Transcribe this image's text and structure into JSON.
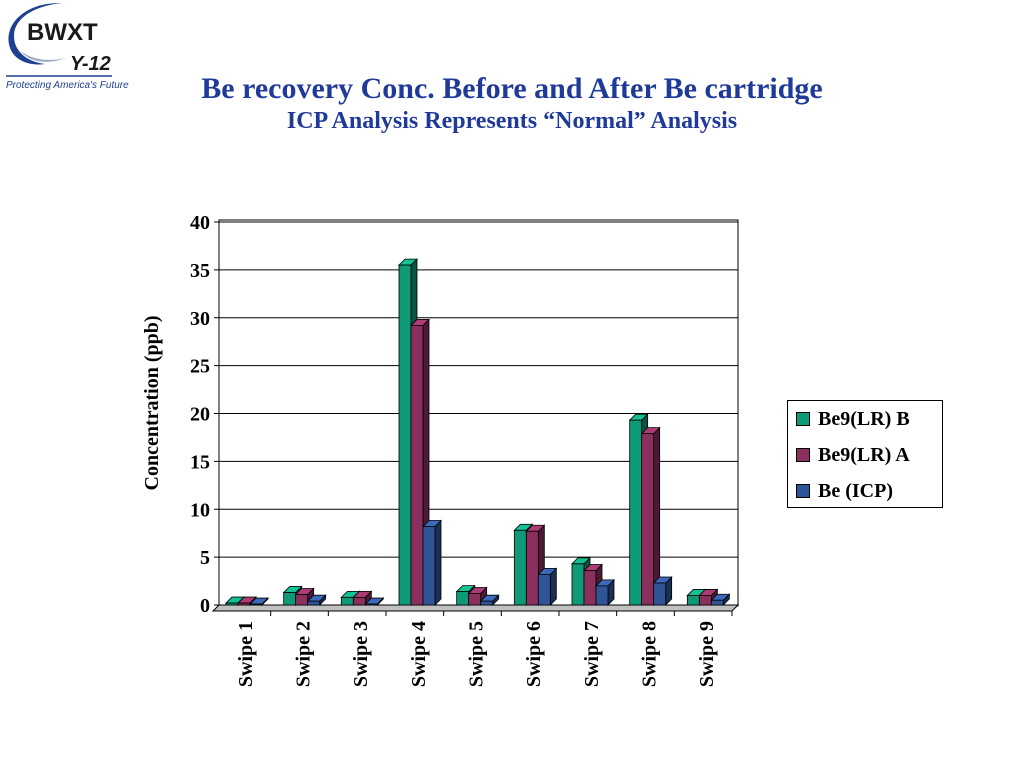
{
  "logo": {
    "text": "BWXT Y-12",
    "tagline": "Protecting America's Future"
  },
  "header": {
    "title": "Be recovery Conc. Before and After Be cartridge",
    "subtitle": "ICP Analysis Represents “Normal” Analysis"
  },
  "chart_data": {
    "type": "bar",
    "style": "3d-clustered",
    "ylabel": "Concentration (ppb)",
    "xlabel": "",
    "ylim": [
      0,
      40
    ],
    "yticks": [
      0,
      5,
      10,
      15,
      20,
      25,
      30,
      35,
      40
    ],
    "grid": true,
    "legend_position": "right",
    "categories": [
      "Swipe 1",
      "Swipe 2",
      "Swipe 3",
      "Swipe 4",
      "Swipe 5",
      "Swipe 6",
      "Swipe 7",
      "Swipe 8",
      "Swipe 9"
    ],
    "series": [
      {
        "name": "Be9(LR) B",
        "color": "#0e9a76",
        "values": [
          0.2,
          1.3,
          0.8,
          35.5,
          1.4,
          7.8,
          4.3,
          19.3,
          1.0
        ]
      },
      {
        "name": "Be9(LR) A",
        "color": "#8b2f5e",
        "values": [
          0.2,
          1.1,
          0.8,
          29.2,
          1.2,
          7.7,
          3.6,
          17.9,
          1.0
        ]
      },
      {
        "name": "Be (ICP)",
        "color": "#2f5597",
        "values": [
          0.1,
          0.4,
          0.1,
          8.2,
          0.4,
          3.2,
          2.0,
          2.3,
          0.5
        ]
      }
    ]
  }
}
